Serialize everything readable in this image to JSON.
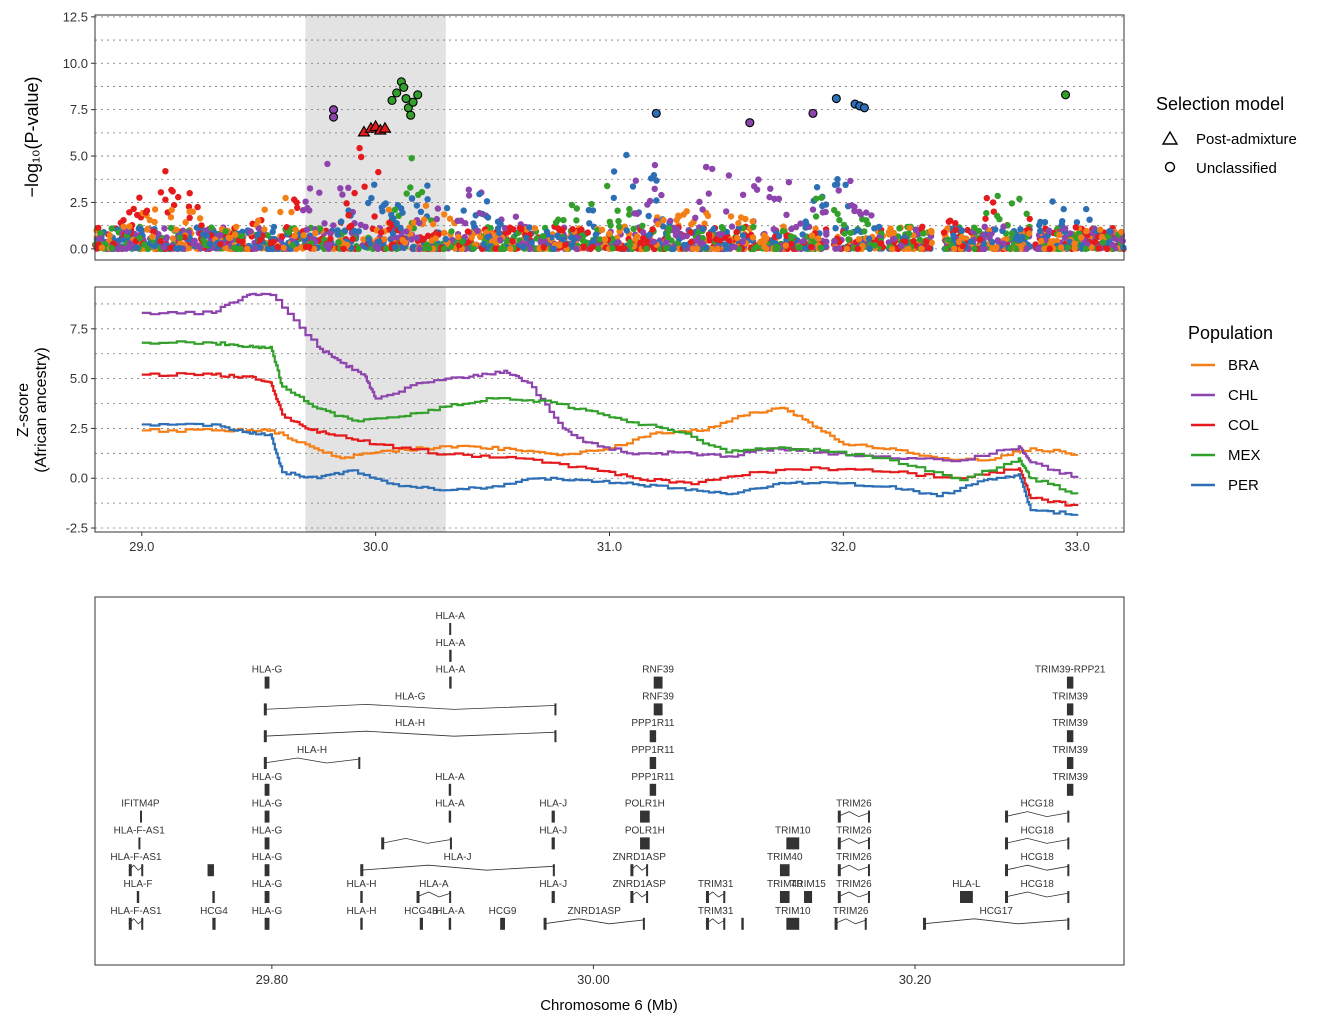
{
  "figure": {
    "panel_a_ylabel": "−log₁₀(P-value)",
    "panel_b_ylabel_line1": "Z-score",
    "panel_b_ylabel_line2": "(African ancestry)",
    "panel_c_xlabel": "Chromosome 6 (Mb)"
  },
  "legend_selection": {
    "title": "Selection model",
    "items": [
      {
        "label": "Post-admixture",
        "shape": "triangle"
      },
      {
        "label": "Unclassified",
        "shape": "circle"
      }
    ]
  },
  "legend_population": {
    "title": "Population",
    "items": [
      {
        "label": "BRA",
        "color": "#f57f17"
      },
      {
        "label": "CHL",
        "color": "#8e44ad"
      },
      {
        "label": "COL",
        "color": "#e41a1c"
      },
      {
        "label": "MEX",
        "color": "#33a02c"
      },
      {
        "label": "PER",
        "color": "#2c6fb5"
      }
    ]
  },
  "chart_data": [
    {
      "type": "scatter",
      "title": "",
      "xlabel": "",
      "ylabel": "−log10(P-value)",
      "xlim": [
        28.8,
        33.2
      ],
      "ylim": [
        -0.6,
        12.6
      ],
      "yticks": [
        "0.0",
        "2.5",
        "5.0",
        "7.5",
        "10.0",
        "12.5"
      ],
      "highlight_region": [
        29.7,
        30.3
      ],
      "grid": "horizontal dotted",
      "note_series": [
        "BRA",
        "CHL",
        "COL",
        "MEX",
        "PER"
      ],
      "notable_points": [
        {
          "x": 29.82,
          "y": 7.5,
          "series": "CHL",
          "model": "Unclassified"
        },
        {
          "x": 29.82,
          "y": 7.1,
          "series": "CHL",
          "model": "Unclassified"
        },
        {
          "x": 29.95,
          "y": 6.3,
          "series": "COL",
          "model": "Post-admixture"
        },
        {
          "x": 29.98,
          "y": 6.5,
          "series": "COL",
          "model": "Post-admixture"
        },
        {
          "x": 30.0,
          "y": 6.6,
          "series": "COL",
          "model": "Post-admixture"
        },
        {
          "x": 30.02,
          "y": 6.4,
          "series": "COL",
          "model": "Post-admixture"
        },
        {
          "x": 30.04,
          "y": 6.5,
          "series": "COL",
          "model": "Post-admixture"
        },
        {
          "x": 30.07,
          "y": 8.0,
          "series": "MEX",
          "model": "Unclassified"
        },
        {
          "x": 30.09,
          "y": 8.4,
          "series": "MEX",
          "model": "Unclassified"
        },
        {
          "x": 30.11,
          "y": 9.0,
          "series": "MEX",
          "model": "Unclassified"
        },
        {
          "x": 30.12,
          "y": 8.7,
          "series": "MEX",
          "model": "Unclassified"
        },
        {
          "x": 30.13,
          "y": 8.1,
          "series": "MEX",
          "model": "Unclassified"
        },
        {
          "x": 30.14,
          "y": 7.6,
          "series": "MEX",
          "model": "Unclassified"
        },
        {
          "x": 30.15,
          "y": 7.2,
          "series": "MEX",
          "model": "Unclassified"
        },
        {
          "x": 30.16,
          "y": 7.9,
          "series": "MEX",
          "model": "Unclassified"
        },
        {
          "x": 30.18,
          "y": 8.3,
          "series": "MEX",
          "model": "Unclassified"
        },
        {
          "x": 31.2,
          "y": 7.3,
          "series": "PER",
          "model": "Unclassified"
        },
        {
          "x": 31.6,
          "y": 6.8,
          "series": "CHL",
          "model": "Unclassified"
        },
        {
          "x": 31.87,
          "y": 7.3,
          "series": "CHL",
          "model": "Unclassified"
        },
        {
          "x": 31.97,
          "y": 8.1,
          "series": "PER",
          "model": "Unclassified"
        },
        {
          "x": 32.05,
          "y": 7.8,
          "series": "PER",
          "model": "Unclassified"
        },
        {
          "x": 32.07,
          "y": 7.7,
          "series": "PER",
          "model": "Unclassified"
        },
        {
          "x": 32.09,
          "y": 7.6,
          "series": "PER",
          "model": "Unclassified"
        },
        {
          "x": 32.95,
          "y": 8.3,
          "series": "MEX",
          "model": "Unclassified"
        }
      ]
    },
    {
      "type": "line",
      "title": "",
      "xlabel": "",
      "ylabel": "Z-score (African ancestry)",
      "xlim": [
        28.8,
        33.2
      ],
      "ylim": [
        -2.7,
        9.6
      ],
      "yticks": [
        "-2.5",
        "0.0",
        "2.5",
        "5.0",
        "7.5"
      ],
      "xticks": [
        "29.0",
        "30.0",
        "31.0",
        "32.0",
        "33.0"
      ],
      "highlight_region": [
        29.7,
        30.3
      ],
      "grid": "horizontal dotted",
      "series": [
        {
          "name": "BRA",
          "color": "#f57f17",
          "x": [
            29.0,
            29.3,
            29.45,
            29.55,
            29.7,
            29.85,
            30.0,
            30.2,
            30.4,
            30.6,
            30.8,
            31.0,
            31.2,
            31.4,
            31.6,
            31.75,
            31.85,
            32.0,
            32.2,
            32.4,
            32.6,
            32.8,
            33.0
          ],
          "y": [
            2.4,
            2.4,
            2.4,
            2.4,
            1.7,
            1.0,
            1.3,
            1.5,
            1.6,
            1.4,
            1.2,
            1.5,
            2.3,
            2.4,
            3.3,
            3.5,
            2.8,
            1.7,
            1.5,
            1.0,
            0.9,
            1.5,
            1.2
          ]
        },
        {
          "name": "CHL",
          "color": "#8e44ad",
          "x": [
            29.0,
            29.3,
            29.45,
            29.55,
            29.75,
            29.85,
            29.95,
            30.0,
            30.2,
            30.4,
            30.55,
            30.65,
            30.8,
            30.9,
            31.1,
            31.3,
            31.5,
            31.7,
            31.9,
            32.2,
            32.5,
            32.75,
            32.8,
            33.0
          ],
          "y": [
            8.3,
            8.3,
            9.2,
            9.2,
            6.6,
            5.8,
            5.2,
            4.0,
            4.8,
            5.1,
            5.4,
            4.8,
            2.5,
            1.8,
            1.2,
            1.3,
            1.1,
            1.5,
            1.3,
            1.0,
            0.9,
            1.6,
            0.8,
            0.0
          ]
        },
        {
          "name": "COL",
          "color": "#e41a1c",
          "x": [
            29.0,
            29.3,
            29.45,
            29.55,
            29.6,
            29.7,
            29.8,
            30.0,
            30.3,
            30.6,
            30.9,
            31.1,
            31.35,
            31.6,
            31.9,
            32.2,
            32.5,
            32.75,
            32.8,
            33.0
          ],
          "y": [
            5.2,
            5.2,
            5.1,
            4.8,
            3.2,
            2.5,
            2.2,
            1.7,
            1.2,
            1.0,
            0.5,
            0.0,
            -0.3,
            0.3,
            0.5,
            0.3,
            0.0,
            0.5,
            -1.0,
            -1.4
          ]
        },
        {
          "name": "MEX",
          "color": "#33a02c",
          "x": [
            29.0,
            29.3,
            29.45,
            29.55,
            29.6,
            29.75,
            29.9,
            30.1,
            30.3,
            30.5,
            30.7,
            30.9,
            31.1,
            31.3,
            31.5,
            31.7,
            31.9,
            32.2,
            32.5,
            32.75,
            32.8,
            33.0
          ],
          "y": [
            6.8,
            6.8,
            6.6,
            6.6,
            4.6,
            3.5,
            2.9,
            3.1,
            3.6,
            4.0,
            3.9,
            3.4,
            2.8,
            2.3,
            1.3,
            1.5,
            1.4,
            0.9,
            -0.1,
            1.0,
            0.0,
            -0.8
          ]
        },
        {
          "name": "PER",
          "color": "#2c6fb5",
          "x": [
            29.0,
            29.3,
            29.45,
            29.55,
            29.6,
            29.75,
            29.9,
            30.1,
            30.3,
            30.5,
            30.7,
            30.9,
            31.1,
            31.3,
            31.5,
            31.7,
            31.9,
            32.2,
            32.4,
            32.6,
            32.75,
            32.8,
            33.0
          ],
          "y": [
            2.7,
            2.7,
            2.3,
            2.2,
            0.3,
            0.0,
            0.4,
            -0.4,
            -0.6,
            -0.4,
            0.0,
            -0.1,
            -0.3,
            -0.5,
            -0.8,
            -0.3,
            -0.2,
            -0.4,
            -0.9,
            -0.1,
            0.2,
            -1.6,
            -1.8
          ]
        }
      ]
    },
    {
      "type": "gene_track",
      "title": "",
      "xlabel": "Chromosome 6 (Mb)",
      "xlim": [
        29.69,
        30.33
      ],
      "xticks": [
        "29.80",
        "30.00",
        "30.20"
      ],
      "genes": [
        {
          "name": "HLA-A",
          "start": 29.9103,
          "end": 29.9115,
          "row": 1
        },
        {
          "name": "HLA-A",
          "start": 29.9103,
          "end": 29.9118,
          "row": 2
        },
        {
          "name": "HLA-A",
          "start": 29.9103,
          "end": 29.9118,
          "row": 3
        },
        {
          "name": "HLA-G",
          "start": 29.7955,
          "end": 29.7985,
          "row": 3
        },
        {
          "name": "RNF39",
          "start": 30.0375,
          "end": 30.043,
          "row": 3
        },
        {
          "name": "TRIM39-RPP21",
          "start": 30.2945,
          "end": 30.2985,
          "row": 3
        },
        {
          "name": "HLA-G",
          "start": 29.795,
          "end": 29.977,
          "row": 4
        },
        {
          "name": "RNF39",
          "start": 30.0375,
          "end": 30.043,
          "row": 4
        },
        {
          "name": "TRIM39",
          "start": 30.2945,
          "end": 30.2985,
          "row": 4
        },
        {
          "name": "HLA-H",
          "start": 29.795,
          "end": 29.977,
          "row": 5
        },
        {
          "name": "PPP1R11",
          "start": 30.035,
          "end": 30.039,
          "row": 5
        },
        {
          "name": "TRIM39",
          "start": 30.2945,
          "end": 30.2985,
          "row": 5
        },
        {
          "name": "HLA-H",
          "start": 29.795,
          "end": 29.855,
          "row": 6
        },
        {
          "name": "PPP1R11",
          "start": 30.035,
          "end": 30.039,
          "row": 6
        },
        {
          "name": "TRIM39",
          "start": 30.2945,
          "end": 30.2985,
          "row": 6
        },
        {
          "name": "HLA-G",
          "start": 29.7955,
          "end": 29.7985,
          "row": 7
        },
        {
          "name": "HLA-A",
          "start": 29.91,
          "end": 29.9115,
          "row": 7
        },
        {
          "name": "PPP1R11",
          "start": 30.035,
          "end": 30.039,
          "row": 7
        },
        {
          "name": "TRIM39",
          "start": 30.2945,
          "end": 30.2985,
          "row": 7
        },
        {
          "name": "IFITM4P",
          "start": 29.718,
          "end": 29.7185,
          "row": 8
        },
        {
          "name": "HLA-G",
          "start": 29.7955,
          "end": 29.7985,
          "row": 8
        },
        {
          "name": "HLA-A",
          "start": 29.91,
          "end": 29.9115,
          "row": 8
        },
        {
          "name": "HLA-J",
          "start": 29.974,
          "end": 29.976,
          "row": 8
        },
        {
          "name": "POLR1H",
          "start": 30.029,
          "end": 30.035,
          "row": 8
        },
        {
          "name": "TRIM26",
          "start": 30.152,
          "end": 30.172,
          "row": 8
        },
        {
          "name": "HCG18",
          "start": 30.256,
          "end": 30.296,
          "row": 8
        },
        {
          "name": "HLA-F-AS1",
          "start": 29.717,
          "end": 29.718,
          "row": 9
        },
        {
          "name": "HLA-G",
          "start": 29.7955,
          "end": 29.7985,
          "row": 9
        },
        {
          "name": "",
          "start": 29.868,
          "end": 29.912,
          "row": 9
        },
        {
          "name": "HLA-J",
          "start": 29.974,
          "end": 29.976,
          "row": 9
        },
        {
          "name": "POLR1H",
          "start": 30.029,
          "end": 30.035,
          "row": 9
        },
        {
          "name": "TRIM10",
          "start": 30.12,
          "end": 30.128,
          "row": 9
        },
        {
          "name": "TRIM26",
          "start": 30.152,
          "end": 30.172,
          "row": 9
        },
        {
          "name": "HCG18",
          "start": 30.256,
          "end": 30.296,
          "row": 9
        },
        {
          "name": "HLA-F-AS1",
          "start": 29.711,
          "end": 29.72,
          "row": 10
        },
        {
          "name": "",
          "start": 29.76,
          "end": 29.764,
          "row": 10
        },
        {
          "name": "HLA-G",
          "start": 29.7955,
          "end": 29.7985,
          "row": 10
        },
        {
          "name": "HLA-J",
          "start": 29.855,
          "end": 29.976,
          "row": 10
        },
        {
          "name": "ZNRD1ASP",
          "start": 30.023,
          "end": 30.034,
          "row": 10
        },
        {
          "name": "TRIM40",
          "start": 30.116,
          "end": 30.122,
          "row": 10
        },
        {
          "name": "TRIM26",
          "start": 30.152,
          "end": 30.172,
          "row": 10
        },
        {
          "name": "HCG18",
          "start": 30.256,
          "end": 30.296,
          "row": 10
        },
        {
          "name": "HLA-F",
          "start": 29.716,
          "end": 29.7175,
          "row": 11
        },
        {
          "name": "",
          "start": 29.763,
          "end": 29.7645,
          "row": 11
        },
        {
          "name": "HLA-G",
          "start": 29.7955,
          "end": 29.7985,
          "row": 11
        },
        {
          "name": "HLA-H",
          "start": 29.855,
          "end": 29.8565,
          "row": 11
        },
        {
          "name": "HLA-A",
          "start": 29.89,
          "end": 29.9115,
          "row": 11
        },
        {
          "name": "HLA-J",
          "start": 29.974,
          "end": 29.976,
          "row": 11
        },
        {
          "name": "ZNRD1ASP",
          "start": 30.023,
          "end": 30.034,
          "row": 11
        },
        {
          "name": "TRIM31",
          "start": 30.07,
          "end": 30.082,
          "row": 11
        },
        {
          "name": "TRIM40",
          "start": 30.116,
          "end": 30.122,
          "row": 11
        },
        {
          "name": "TRIM15",
          "start": 30.131,
          "end": 30.136,
          "row": 11
        },
        {
          "name": "TRIM26",
          "start": 30.152,
          "end": 30.172,
          "row": 11
        },
        {
          "name": "HLA-L",
          "start": 30.228,
          "end": 30.236,
          "row": 11
        },
        {
          "name": "HCG18",
          "start": 30.256,
          "end": 30.296,
          "row": 11
        },
        {
          "name": "HLA-F-AS1",
          "start": 29.711,
          "end": 29.72,
          "row": 12
        },
        {
          "name": "HCG4",
          "start": 29.763,
          "end": 29.765,
          "row": 12
        },
        {
          "name": "HLA-G",
          "start": 29.7955,
          "end": 29.7985,
          "row": 12
        },
        {
          "name": "HLA-H",
          "start": 29.855,
          "end": 29.8565,
          "row": 12
        },
        {
          "name": "HCG4B",
          "start": 29.892,
          "end": 29.894,
          "row": 12
        },
        {
          "name": "HLA-A",
          "start": 29.91,
          "end": 29.9115,
          "row": 12
        },
        {
          "name": "HCG9",
          "start": 29.942,
          "end": 29.945,
          "row": 12
        },
        {
          "name": "ZNRD1ASP",
          "start": 29.969,
          "end": 30.032,
          "row": 12
        },
        {
          "name": "TRIM31",
          "start": 30.07,
          "end": 30.082,
          "row": 12
        },
        {
          "name": "",
          "start": 30.092,
          "end": 30.0935,
          "row": 12
        },
        {
          "name": "TRIM10",
          "start": 30.12,
          "end": 30.128,
          "row": 12
        },
        {
          "name": "TRIM26",
          "start": 30.15,
          "end": 30.17,
          "row": 12
        },
        {
          "name": "HCG17",
          "start": 30.205,
          "end": 30.296,
          "row": 12
        }
      ]
    }
  ]
}
